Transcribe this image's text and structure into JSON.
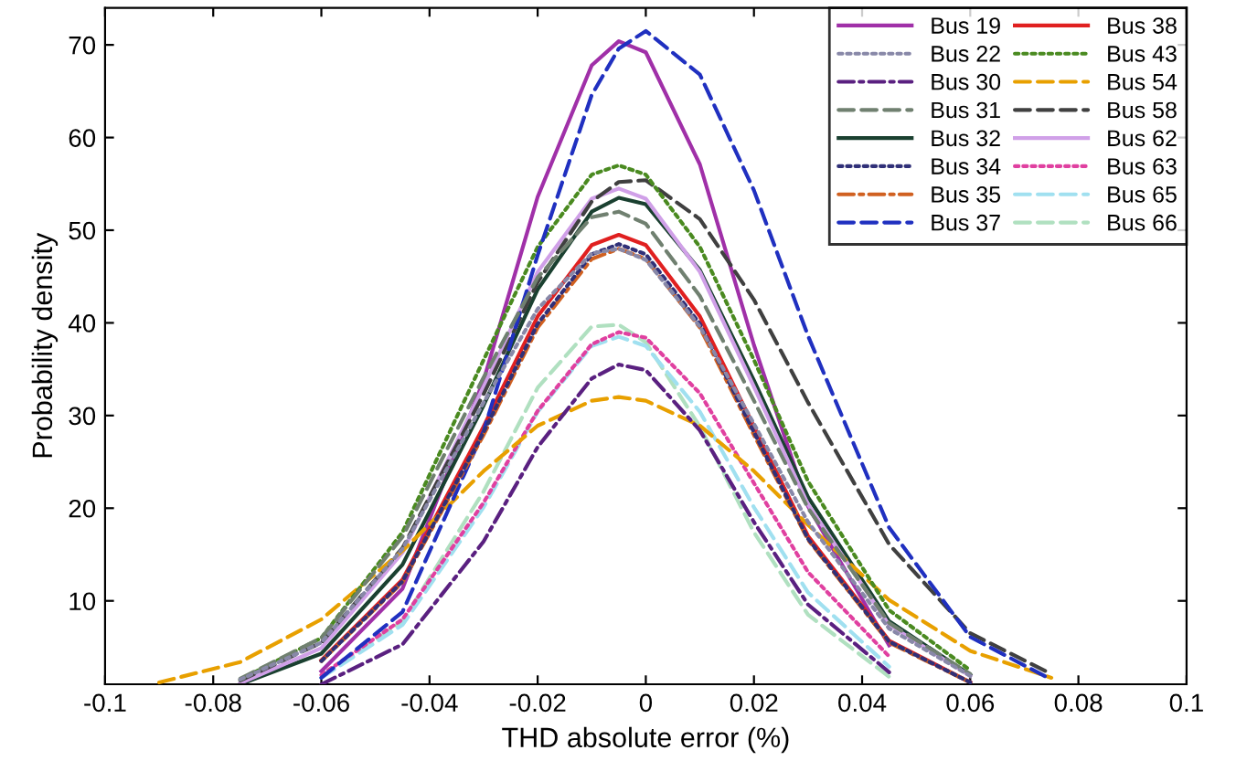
{
  "chart_data": {
    "type": "line",
    "xlabel": "THD absolute error (%)",
    "ylabel": "Probability density",
    "x": [
      -0.09,
      -0.075,
      -0.06,
      -0.045,
      -0.03,
      -0.02,
      -0.01,
      -0.005,
      0,
      0.01,
      0.02,
      0.03,
      0.045,
      0.06,
      0.075
    ],
    "xlim": [
      -0.1,
      0.1
    ],
    "xticks": [
      -0.1,
      -0.08,
      -0.06,
      -0.04,
      -0.02,
      0,
      0.02,
      0.04,
      0.06,
      0.08,
      0.1
    ],
    "ylim": [
      1,
      74
    ],
    "yticks": [
      10,
      20,
      30,
      40,
      50,
      60,
      70
    ],
    "grid": false,
    "legend": "top right",
    "series": [
      {
        "name": "Bus 19",
        "color": "#a030a8",
        "line_style": "solid",
        "values": [
          null,
          null,
          2.4,
          11.3,
          33.8,
          53.6,
          67.8,
          70.4,
          69.2,
          57.1,
          37.6,
          20.2,
          5.2,
          null,
          null
        ]
      },
      {
        "name": "Bus 22",
        "color": "#8888a8",
        "line_style": "dotted",
        "values": [
          null,
          1.5,
          5.5,
          15.6,
          31.4,
          41.5,
          47.5,
          48,
          46.8,
          39.6,
          29.1,
          18.5,
          7.0,
          1.9,
          null
        ]
      },
      {
        "name": "Bus 30",
        "color": "#5a2080",
        "line_style": "dashdot",
        "values": [
          null,
          null,
          1.0,
          5.3,
          16.4,
          26.6,
          34.0,
          35.5,
          34.9,
          28.4,
          18.5,
          9.6,
          2.3,
          null,
          null
        ]
      },
      {
        "name": "Bus 31",
        "color": "#708070",
        "line_style": "dashed",
        "values": [
          null,
          1.6,
          6.0,
          16.9,
          34.1,
          44.9,
          51.4,
          52.0,
          50.7,
          42.9,
          31.6,
          20.0,
          7.6,
          2.1,
          null
        ]
      },
      {
        "name": "Bus 32",
        "color": "#1a4030",
        "line_style": "solid",
        "values": [
          null,
          1.0,
          4.3,
          13.9,
          31.1,
          43.6,
          52.0,
          53.5,
          52.8,
          45.7,
          33.8,
          21.2,
          7.8,
          2.0,
          null
        ]
      },
      {
        "name": "Bus 34",
        "color": "#303078",
        "line_style": "dotted",
        "values": [
          null,
          null,
          3.5,
          12.1,
          28.2,
          39.9,
          47.4,
          48.5,
          47.4,
          39.9,
          28.2,
          16.7,
          5.6,
          1.2,
          null
        ]
      },
      {
        "name": "Bus 35",
        "color": "#d06020",
        "line_style": "dashdot",
        "values": [
          null,
          null,
          3.5,
          12.0,
          27.9,
          39.5,
          46.9,
          48,
          46.9,
          39.5,
          27.9,
          16.6,
          5.5,
          1.2,
          null
        ]
      },
      {
        "name": "Bus 37",
        "color": "#2030c0",
        "line_style": "dashed",
        "values": [
          null,
          null,
          1.7,
          8.8,
          28.3,
          47.3,
          64.6,
          69.6,
          71.5,
          66.8,
          54.3,
          38.6,
          17.9,
          6.1,
          1.5
        ]
      },
      {
        "name": "Bus 38",
        "color": "#e02020",
        "line_style": "solid",
        "values": [
          null,
          null,
          3.6,
          12.3,
          28.8,
          40.7,
          48.4,
          49.5,
          48.4,
          40.7,
          28.8,
          17.0,
          5.7,
          1.2,
          null
        ]
      },
      {
        "name": "Bus 43",
        "color": "#4a8a20",
        "line_style": "dotted",
        "values": [
          null,
          1.5,
          6.0,
          17.4,
          36.0,
          48.2,
          56.0,
          57,
          56.0,
          48.2,
          36.0,
          22.9,
          9.0,
          2.5,
          null
        ]
      },
      {
        "name": "Bus 54",
        "color": "#e8a000",
        "line_style": "dashed",
        "values": [
          1.2,
          3.4,
          8.0,
          15.4,
          24.0,
          28.9,
          31.6,
          32,
          31.6,
          28.9,
          24.0,
          18.2,
          10.1,
          4.6,
          1.7
        ]
      },
      {
        "name": "Bus 58",
        "color": "#404040",
        "line_style": "dashed",
        "values": [
          null,
          1.4,
          5.5,
          15.7,
          32.3,
          44.4,
          53.1,
          55.2,
          55.4,
          51.2,
          42.5,
          31.4,
          16.1,
          6.5,
          2.1
        ]
      },
      {
        "name": "Bus 62",
        "color": "#d0a0e8",
        "line_style": "solid",
        "values": [
          null,
          1.1,
          4.9,
          15.2,
          33.1,
          45.5,
          53.4,
          54.5,
          53.4,
          45.5,
          33.1,
          20.4,
          7.4,
          1.9,
          null
        ]
      },
      {
        "name": "Bus 63",
        "color": "#e040a0",
        "line_style": "dotted",
        "values": [
          null,
          null,
          2.0,
          8.0,
          20.6,
          30.5,
          37.7,
          39,
          38.4,
          32.4,
          22.7,
          13.1,
          4.0,
          null,
          null
        ]
      },
      {
        "name": "Bus 65",
        "color": "#a0e0f0",
        "line_style": "dashed",
        "values": [
          null,
          null,
          1.7,
          7.4,
          20.1,
          30.4,
          37.5,
          38.5,
          37.5,
          30.4,
          20.1,
          10.9,
          2.9,
          null,
          null
        ]
      },
      {
        "name": "Bus 66",
        "color": "#b0e0c0",
        "line_style": "dashed",
        "values": [
          null,
          null,
          1.7,
          7.8,
          21.8,
          33.0,
          39.6,
          39.8,
          37.9,
          28.8,
          17.4,
          8.5,
          1.8,
          null,
          null
        ]
      }
    ]
  }
}
